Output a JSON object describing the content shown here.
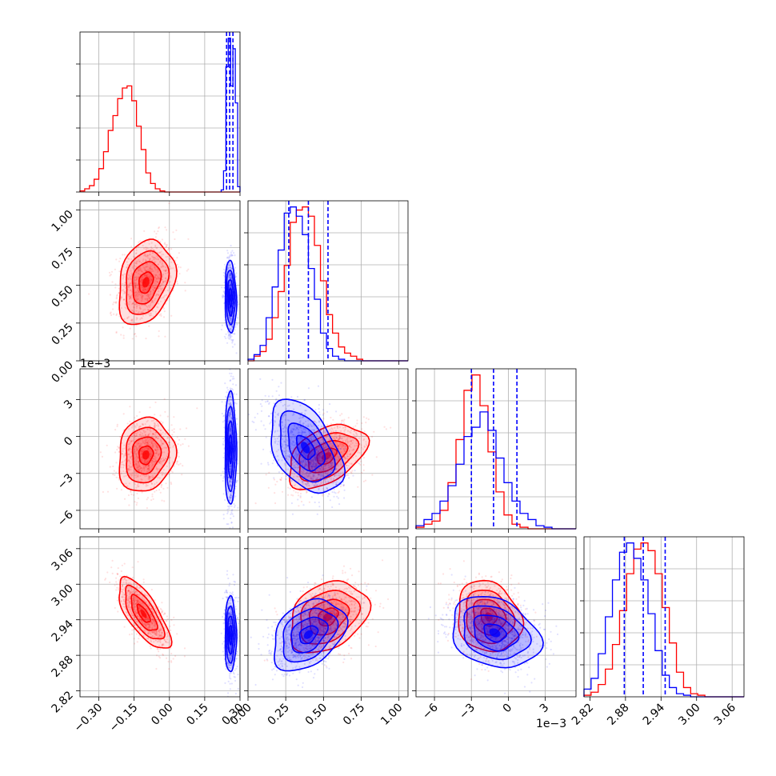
{
  "chart_data": {
    "type": "corner",
    "grid": true,
    "series": [
      {
        "name": "",
        "color": "#ff0000"
      },
      {
        "name": "",
        "color": "#0000ff"
      }
    ],
    "parameters": [
      {
        "index": 0,
        "range": [
          -0.38,
          0.3
        ],
        "ticks": [
          -0.3,
          -0.15,
          0.0,
          0.15,
          0.3
        ],
        "tick_labels": [
          "−0.30",
          "−0.15",
          "0.00",
          "0.15",
          "0.30"
        ],
        "offset_label": ""
      },
      {
        "index": 1,
        "range": [
          0.0,
          1.06
        ],
        "ticks": [
          0.0,
          0.25,
          0.5,
          0.75,
          1.0
        ],
        "tick_labels": [
          "0.00",
          "0.25",
          "0.50",
          "0.75",
          "1.00"
        ],
        "offset_label": ""
      },
      {
        "index": 2,
        "range": [
          -7.5,
          5.5
        ],
        "ticks": [
          -6,
          -3,
          0,
          3
        ],
        "tick_labels": [
          "−6",
          "−3",
          "0",
          "3"
        ],
        "offset_label": "1e−3"
      },
      {
        "index": 3,
        "range": [
          2.81,
          3.08
        ],
        "ticks": [
          2.82,
          2.88,
          2.94,
          3.0,
          3.06
        ],
        "tick_labels": [
          "2.82",
          "2.88",
          "2.94",
          "3.00",
          "3.06"
        ],
        "offset_label": ""
      }
    ],
    "marginals": [
      {
        "param": 0,
        "red": {
          "edges_start": -0.38,
          "bin_width": 0.02,
          "counts": [
            1,
            3,
            6,
            12,
            22,
            38,
            58,
            72,
            88,
            98,
            100,
            86,
            62,
            40,
            18,
            8,
            3,
            1,
            0,
            0,
            0,
            0,
            0,
            0,
            0,
            0,
            0,
            0,
            0,
            0,
            0,
            0,
            0,
            0
          ]
        },
        "blue": {
          "edges_start": 0.22,
          "bin_width": 0.01,
          "counts": [
            2,
            20,
            118,
            145,
            100,
            135,
            84,
            5
          ]
        },
        "blue_quantiles": [
          0.243,
          0.256,
          0.27
        ]
      },
      {
        "param": 1,
        "red": {
          "edges_start": 0.0,
          "bin_width": 0.04,
          "counts": [
            0,
            3,
            6,
            14,
            28,
            45,
            62,
            90,
            98,
            100,
            94,
            75,
            52,
            30,
            18,
            9,
            5,
            3,
            1,
            0,
            0,
            0,
            0,
            0,
            0,
            0,
            0
          ]
        },
        "blue": {
          "edges_start": 0.0,
          "bin_width": 0.04,
          "counts": [
            1,
            4,
            10,
            28,
            48,
            72,
            96,
            100,
            94,
            82,
            60,
            40,
            18,
            8,
            3,
            1,
            0,
            0,
            0,
            0,
            0,
            0,
            0,
            0,
            0,
            0,
            0
          ]
        },
        "blue_quantiles": [
          0.27,
          0.4,
          0.53
        ]
      },
      {
        "param": 2,
        "red": {
          "edges_start": -7.5,
          "bin_width": 0.65,
          "counts": [
            1,
            3,
            5,
            12,
            30,
            58,
            90,
            100,
            80,
            50,
            24,
            9,
            3,
            1,
            0,
            0,
            0,
            0,
            0,
            0
          ]
        },
        "blue": {
          "edges_start": -7.5,
          "bin_width": 0.65,
          "counts": [
            2,
            6,
            10,
            18,
            28,
            42,
            60,
            66,
            76,
            64,
            46,
            30,
            18,
            10,
            6,
            2,
            1,
            0,
            0,
            0
          ]
        },
        "blue_quantiles": [
          -3.0,
          -1.2,
          0.7
        ]
      },
      {
        "param": 3,
        "red": {
          "edges_start": 2.81,
          "bin_width": 0.012,
          "counts": [
            1,
            3,
            8,
            18,
            34,
            56,
            80,
            96,
            100,
            95,
            80,
            58,
            35,
            16,
            6,
            2,
            1,
            0,
            0,
            0,
            0,
            0,
            0
          ]
        },
        "blue": {
          "edges_start": 2.81,
          "bin_width": 0.012,
          "counts": [
            5,
            12,
            28,
            52,
            76,
            94,
            100,
            90,
            76,
            54,
            30,
            14,
            6,
            2,
            1,
            0,
            0,
            0,
            0,
            0,
            0,
            0,
            0
          ]
        },
        "blue_quantiles": [
          2.878,
          2.91,
          2.947
        ]
      }
    ],
    "joint": [
      {
        "x_param": 0,
        "y_param": 1,
        "red": {
          "mean": [
            -0.1,
            0.52
          ],
          "sigma": [
            0.06,
            0.14
          ],
          "rho": 0.25
        },
        "blue": {
          "mean": [
            0.26,
            0.42
          ],
          "sigma": [
            0.012,
            0.12
          ],
          "rho": -0.1
        }
      },
      {
        "x_param": 0,
        "y_param": 2,
        "red": {
          "mean": [
            -0.1,
            -1.5
          ],
          "sigma": [
            0.06,
            1.5
          ],
          "rho": 0.1
        },
        "blue": {
          "mean": [
            0.26,
            -1.0
          ],
          "sigma": [
            0.012,
            2.3
          ],
          "rho": 0.0
        }
      },
      {
        "x_param": 1,
        "y_param": 2,
        "red": {
          "mean": [
            0.52,
            -1.6
          ],
          "sigma": [
            0.13,
            1.3
          ],
          "rho": 0.45
        },
        "blue": {
          "mean": [
            0.38,
            -0.9
          ],
          "sigma": [
            0.12,
            1.9
          ],
          "rho": -0.45
        }
      },
      {
        "x_param": 0,
        "y_param": 3,
        "red": {
          "mean": [
            -0.11,
            2.95
          ],
          "sigma": [
            0.055,
            0.03
          ],
          "rho": -0.72
        },
        "blue": {
          "mean": [
            0.26,
            2.915
          ],
          "sigma": [
            0.012,
            0.032
          ],
          "rho": 0.0
        }
      },
      {
        "x_param": 1,
        "y_param": 3,
        "red": {
          "mean": [
            0.53,
            2.945
          ],
          "sigma": [
            0.13,
            0.03
          ],
          "rho": 0.3
        },
        "blue": {
          "mean": [
            0.4,
            2.915
          ],
          "sigma": [
            0.12,
            0.03
          ],
          "rho": 0.35
        }
      },
      {
        "x_param": 2,
        "y_param": 3,
        "red": {
          "mean": [
            -1.6,
            2.945
          ],
          "sigma": [
            1.3,
            0.03
          ],
          "rho": -0.15
        },
        "blue": {
          "mean": [
            -1.1,
            2.918
          ],
          "sigma": [
            1.8,
            0.03
          ],
          "rho": -0.25
        }
      }
    ],
    "contour_levels_sigma": [
      0.5,
      1.0,
      1.5,
      2.0
    ],
    "title": "",
    "xlabel": "",
    "ylabel": ""
  }
}
